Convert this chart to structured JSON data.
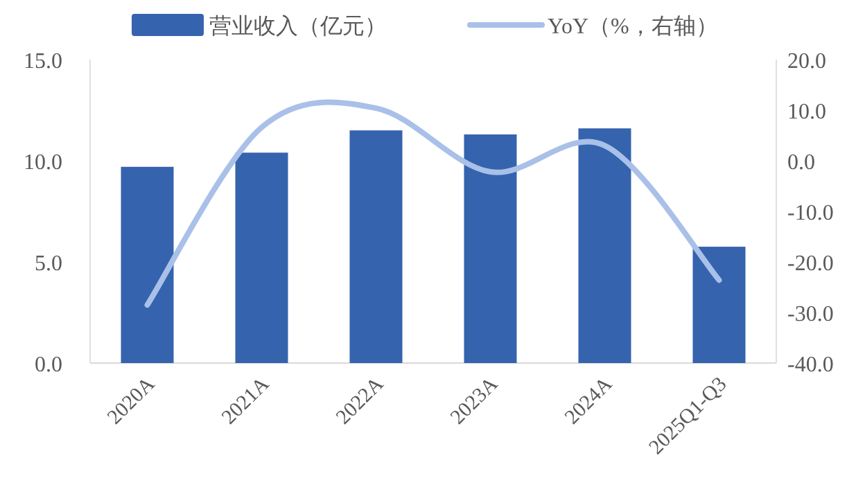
{
  "chart_data": {
    "type": "bar",
    "categories": [
      "2020A",
      "2021A",
      "2022A",
      "2023A",
      "2024A",
      "2025Q1-Q3"
    ],
    "series": [
      {
        "name": "营业收入（亿元）",
        "color": "#3563ae",
        "values": [
          9.7,
          10.4,
          11.5,
          11.3,
          11.6,
          5.75
        ]
      },
      {
        "name": "YoY（%，右轴）",
        "type": "line",
        "axis": "y2",
        "color": "#a9c0e8",
        "values": [
          -28.5,
          6.6,
          10.4,
          -2.2,
          3.0,
          -23.6
        ]
      }
    ],
    "ylim": [
      0,
      15
    ],
    "yticks": [
      {
        "value": 0,
        "label": "0.0"
      },
      {
        "value": 5,
        "label": "5.0"
      },
      {
        "value": 10,
        "label": "10.0"
      },
      {
        "value": 15,
        "label": "15.0"
      }
    ],
    "y2lim": [
      -40,
      20
    ],
    "y2ticks": [
      {
        "value": -40,
        "label": "-40.0"
      },
      {
        "value": -30,
        "label": "-30.0"
      },
      {
        "value": -20,
        "label": "-20.0"
      },
      {
        "value": -10,
        "label": "-10.0"
      },
      {
        "value": 0,
        "label": "0.0"
      },
      {
        "value": 10,
        "label": "10.0"
      },
      {
        "value": 20,
        "label": "20.0"
      }
    ],
    "grid": false,
    "legend": "top",
    "marker": "none",
    "line_style": "solid"
  }
}
